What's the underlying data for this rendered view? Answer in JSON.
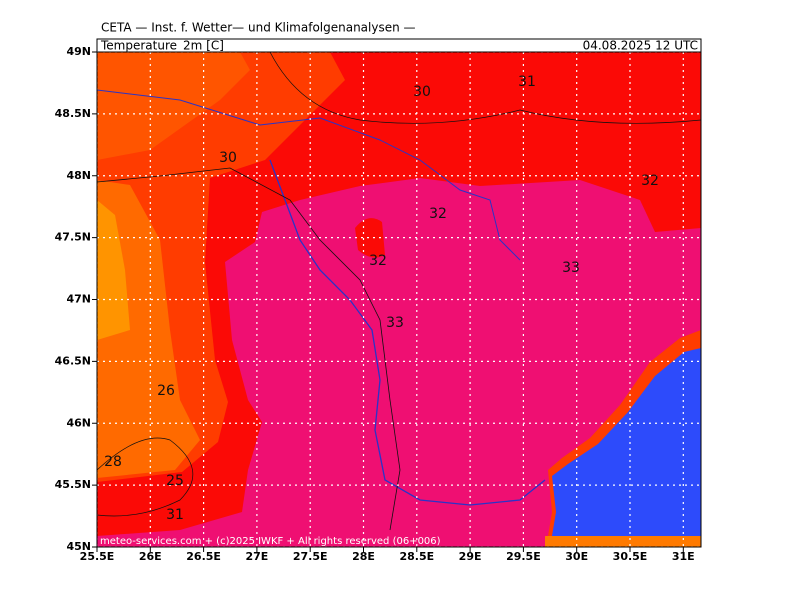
{
  "header": {
    "title": "CETA — Inst. f. Wetter— und Klimafolgenanalysen —",
    "field": "Temperature_2m [C]",
    "valid": "04.08.2025 12 UTC"
  },
  "axes": {
    "lat_labels": [
      "49N",
      "48.5N",
      "48N",
      "47.5N",
      "47N",
      "46.5N",
      "46N",
      "45.5N",
      "45N"
    ],
    "lon_labels": [
      "25.5E",
      "26E",
      "26.5E",
      "27E",
      "27.5E",
      "28E",
      "28.5E",
      "29E",
      "29.5E",
      "30E",
      "30.5E",
      "31E"
    ]
  },
  "contour_labels": [
    "30",
    "31",
    "30",
    "32",
    "32",
    "32",
    "33",
    "33",
    "26",
    "28",
    "25",
    "31"
  ],
  "footer": "meteo-services.com + (c)2025 IWKF + All rights reserved (06+006)"
}
